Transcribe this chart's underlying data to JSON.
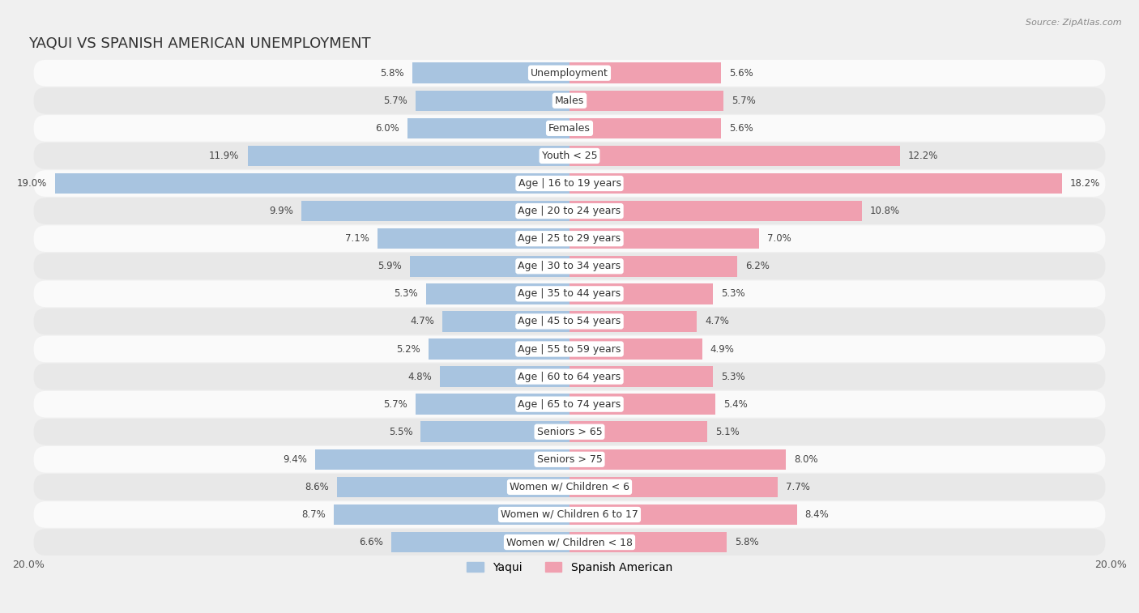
{
  "title": "YAQUI VS SPANISH AMERICAN UNEMPLOYMENT",
  "source": "Source: ZipAtlas.com",
  "categories": [
    "Unemployment",
    "Males",
    "Females",
    "Youth < 25",
    "Age | 16 to 19 years",
    "Age | 20 to 24 years",
    "Age | 25 to 29 years",
    "Age | 30 to 34 years",
    "Age | 35 to 44 years",
    "Age | 45 to 54 years",
    "Age | 55 to 59 years",
    "Age | 60 to 64 years",
    "Age | 65 to 74 years",
    "Seniors > 65",
    "Seniors > 75",
    "Women w/ Children < 6",
    "Women w/ Children 6 to 17",
    "Women w/ Children < 18"
  ],
  "yaqui": [
    5.8,
    5.7,
    6.0,
    11.9,
    19.0,
    9.9,
    7.1,
    5.9,
    5.3,
    4.7,
    5.2,
    4.8,
    5.7,
    5.5,
    9.4,
    8.6,
    8.7,
    6.6
  ],
  "spanish": [
    5.6,
    5.7,
    5.6,
    12.2,
    18.2,
    10.8,
    7.0,
    6.2,
    5.3,
    4.7,
    4.9,
    5.3,
    5.4,
    5.1,
    8.0,
    7.7,
    8.4,
    5.8
  ],
  "yaqui_color": "#a8c4e0",
  "spanish_color": "#f0a0b0",
  "yaqui_color_strong": "#6699cc",
  "spanish_color_strong": "#e06070",
  "bg_color": "#f0f0f0",
  "row_bg_light": "#fafafa",
  "row_bg_dark": "#e8e8e8",
  "axis_limit": 20.0,
  "bar_height": 0.75,
  "title_fontsize": 13,
  "label_fontsize": 9,
  "value_fontsize": 8.5,
  "tick_fontsize": 9,
  "legend_fontsize": 10
}
